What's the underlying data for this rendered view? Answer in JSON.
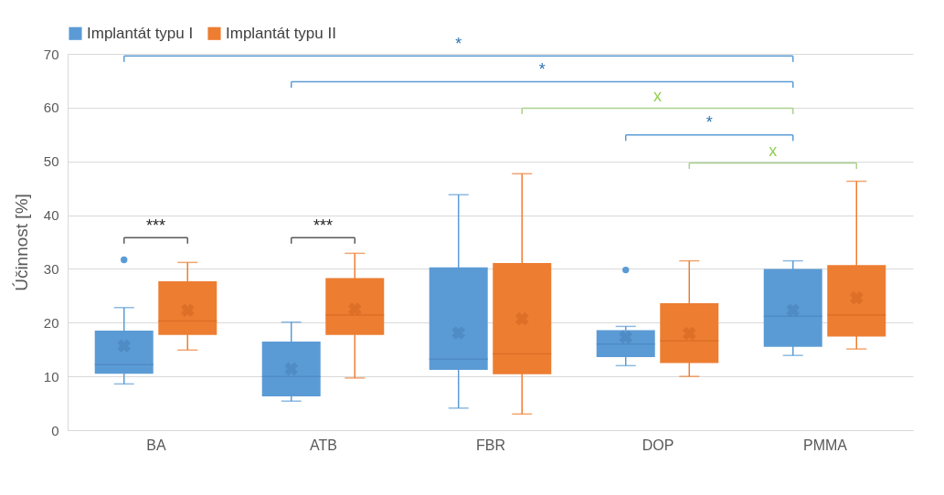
{
  "chart_data": {
    "type": "box",
    "ylabel": "Účinnost [%]",
    "categories": [
      "BA",
      "ATB",
      "FBR",
      "DOP",
      "PMMA"
    ],
    "ylim": [
      0,
      70
    ],
    "yticks": [
      0,
      10,
      20,
      30,
      40,
      50,
      60,
      70
    ],
    "grid": "y",
    "legend": "top",
    "series": [
      {
        "name": "Implantát typu I",
        "color": "#5b9bd5",
        "boxes": [
          {
            "low": 8.6,
            "q1": 10.5,
            "median": 12.2,
            "q3": 18.5,
            "high": 22.8,
            "mean": 15.7,
            "outliers": [
              31.7
            ]
          },
          {
            "low": 5.4,
            "q1": 6.3,
            "median": 10.0,
            "q3": 16.5,
            "high": 20.1,
            "mean": 11.4
          },
          {
            "low": 4.1,
            "q1": 11.2,
            "median": 13.2,
            "q3": 30.3,
            "high": 43.8,
            "mean": 18.1
          },
          {
            "low": 12.0,
            "q1": 13.6,
            "median": 16.0,
            "q3": 18.6,
            "high": 19.3,
            "mean": 17.3,
            "outliers": [
              29.8
            ]
          },
          {
            "low": 13.9,
            "q1": 15.5,
            "median": 21.2,
            "q3": 30.0,
            "high": 31.5,
            "mean": 22.3
          }
        ]
      },
      {
        "name": "Implantát typu II",
        "color": "#ed7d31",
        "boxes": [
          {
            "low": 14.9,
            "q1": 17.7,
            "median": 20.3,
            "q3": 27.7,
            "high": 31.2,
            "mean": 22.3
          },
          {
            "low": 9.7,
            "q1": 17.7,
            "median": 21.4,
            "q3": 28.3,
            "high": 32.9,
            "mean": 22.5
          },
          {
            "low": 3.0,
            "q1": 10.4,
            "median": 14.2,
            "q3": 31.1,
            "high": 47.7,
            "mean": 20.7
          },
          {
            "low": 10.0,
            "q1": 12.5,
            "median": 16.6,
            "q3": 23.6,
            "high": 31.5,
            "mean": 18.0
          },
          {
            "low": 15.1,
            "q1": 17.4,
            "median": 21.4,
            "q3": 30.7,
            "high": 46.3,
            "mean": 24.6
          }
        ]
      }
    ],
    "annotations": [
      "***",
      "***",
      "*",
      "*",
      "x",
      "*",
      "x"
    ]
  }
}
